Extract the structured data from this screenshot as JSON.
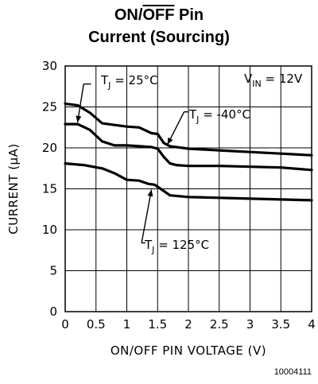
{
  "title_line1_prefix": "ON/",
  "title_line1_overline": "OFF",
  "title_line1_suffix": " Pin",
  "title_line2": "Current (Sourcing)",
  "footer_id": "10004111",
  "chart_data": {
    "type": "line",
    "xlabel": "ON/OFF PIN VOLTAGE (V)",
    "ylabel": "CURRENT (μA)",
    "xlim": [
      0,
      4
    ],
    "ylim": [
      0,
      30
    ],
    "xticks": [
      "0",
      "0.5",
      "1",
      "1.5",
      "2",
      "2.5",
      "3",
      "3.5",
      "4"
    ],
    "yticks": [
      "0",
      "5",
      "10",
      "15",
      "20",
      "25",
      "30"
    ],
    "grid": true,
    "annotations": {
      "vin": {
        "main": "V",
        "sub": "IN",
        "rest": " = 12V"
      },
      "tj25": {
        "main": "T",
        "sub": "J",
        "rest": " = 25°C"
      },
      "tjm40": {
        "main": "T",
        "sub": "J",
        "rest": " = -40°C"
      },
      "tj125": {
        "main": "T",
        "sub": "J",
        "rest": " = 125°C"
      }
    },
    "series": [
      {
        "x": [
          0,
          0.2,
          0.4,
          0.6,
          0.8,
          1.0,
          1.2,
          1.4,
          1.5,
          1.6,
          1.7,
          2.0,
          2.5,
          3.0,
          3.5,
          4.0
        ],
        "values": [
          25.4,
          25.2,
          24.3,
          23.0,
          22.8,
          22.6,
          22.5,
          21.8,
          21.7,
          20.6,
          20.2,
          19.9,
          19.7,
          19.5,
          19.3,
          19.1
        ]
      },
      {
        "x": [
          0,
          0.2,
          0.4,
          0.6,
          0.8,
          1.0,
          1.2,
          1.4,
          1.5,
          1.6,
          1.7,
          1.8,
          2.0,
          2.5,
          3.0,
          3.5,
          4.0
        ],
        "values": [
          22.9,
          22.9,
          22.2,
          20.8,
          20.3,
          20.3,
          20.2,
          20.1,
          19.9,
          18.9,
          18.1,
          17.9,
          17.8,
          17.8,
          17.7,
          17.6,
          17.3
        ]
      },
      {
        "x": [
          0,
          0.3,
          0.6,
          0.8,
          1.0,
          1.2,
          1.35,
          1.45,
          1.55,
          1.7,
          2.0,
          2.5,
          3.0,
          3.5,
          4.0
        ],
        "values": [
          18.1,
          17.9,
          17.5,
          16.9,
          16.1,
          16.0,
          15.6,
          15.5,
          15.0,
          14.2,
          14.0,
          13.9,
          13.8,
          13.7,
          13.6
        ]
      }
    ]
  }
}
